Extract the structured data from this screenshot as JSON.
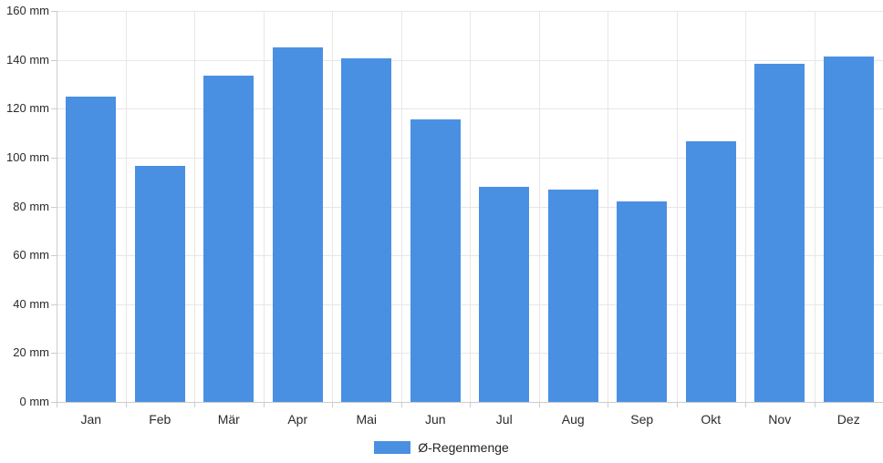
{
  "chart": {
    "legend": {
      "label": "Ø-Regenmenge"
    },
    "colors": {
      "bar": "#4a90e2",
      "gridline": "#e7e7e7",
      "axis": "#cccccc",
      "label": "#2b2b2b",
      "background": "#ffffff"
    }
  },
  "chart_data": {
    "type": "bar",
    "categories": [
      "Jan",
      "Feb",
      "Mär",
      "Apr",
      "Mai",
      "Jun",
      "Jul",
      "Aug",
      "Sep",
      "Okt",
      "Nov",
      "Dez"
    ],
    "series": [
      {
        "name": "Ø-Regenmenge",
        "color": "#4a90e2",
        "values": [
          125,
          96.5,
          133.5,
          145,
          140.5,
          115.5,
          88,
          87,
          82,
          106.5,
          138.5,
          141.5
        ]
      }
    ],
    "title": "",
    "xlabel": "",
    "ylabel": "",
    "ylim": [
      0,
      160
    ],
    "ytick_step": 20,
    "ytick_suffix": " mm",
    "grid": true,
    "legend_position": "bottom-center"
  }
}
